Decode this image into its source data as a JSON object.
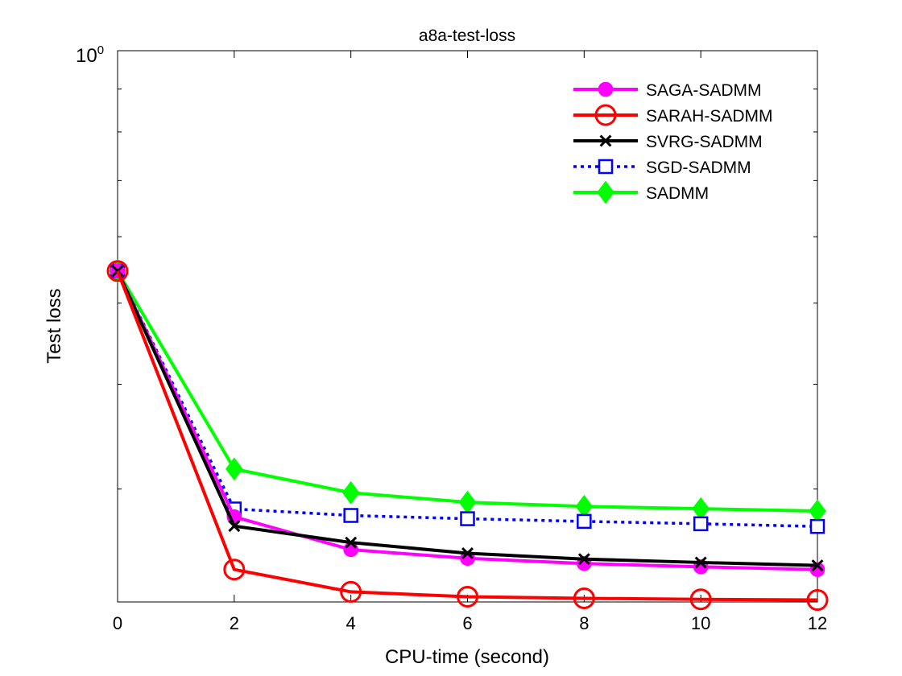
{
  "chart_data": {
    "type": "line",
    "title": "a8a-test-loss",
    "xlabel": "CPU-time (second)",
    "ylabel": "Test loss",
    "yscale": "log",
    "xlim": [
      0,
      12
    ],
    "ylim": [
      0.22,
      1.0
    ],
    "x_ticks": [
      0,
      2,
      4,
      6,
      8,
      10,
      12
    ],
    "x_tick_labels": [
      "0",
      "2",
      "4",
      "6",
      "8",
      "10",
      "12"
    ],
    "y_top_label_base": "10",
    "y_top_label_exp": "0",
    "y_minor_ticks": [
      0.3,
      0.4,
      0.5,
      0.6,
      0.7,
      0.8,
      0.9
    ],
    "legend_position": "top-right",
    "x": [
      0,
      2,
      4,
      6,
      8,
      10,
      12
    ],
    "series": [
      {
        "name": "SAGA-SADMM",
        "color": "#ff00ff",
        "style": "solid",
        "marker": "circle-filled",
        "values": [
          0.546,
          0.278,
          0.254,
          0.248,
          0.2445,
          0.2423,
          0.2405
        ]
      },
      {
        "name": "SARAH-SADMM",
        "color": "#ff0000",
        "style": "solid",
        "marker": "circle-open",
        "values": [
          0.546,
          0.2405,
          0.2262,
          0.2232,
          0.2222,
          0.2216,
          0.2212
        ]
      },
      {
        "name": "SVRG-SADMM",
        "color": "#000000",
        "style": "solid",
        "marker": "x",
        "values": [
          0.546,
          0.271,
          0.259,
          0.2515,
          0.2475,
          0.2452,
          0.2432
        ]
      },
      {
        "name": "SGD-SADMM",
        "color": "#0000ff",
        "style": "dotted",
        "marker": "square-open",
        "values": [
          0.546,
          0.284,
          0.279,
          0.2765,
          0.2745,
          0.2727,
          0.2707
        ]
      },
      {
        "name": "SADMM",
        "color": "#00ff00",
        "style": "solid",
        "marker": "diamond-filled",
        "values": [
          0.546,
          0.317,
          0.297,
          0.2893,
          0.286,
          0.2842,
          0.2824
        ]
      }
    ]
  }
}
